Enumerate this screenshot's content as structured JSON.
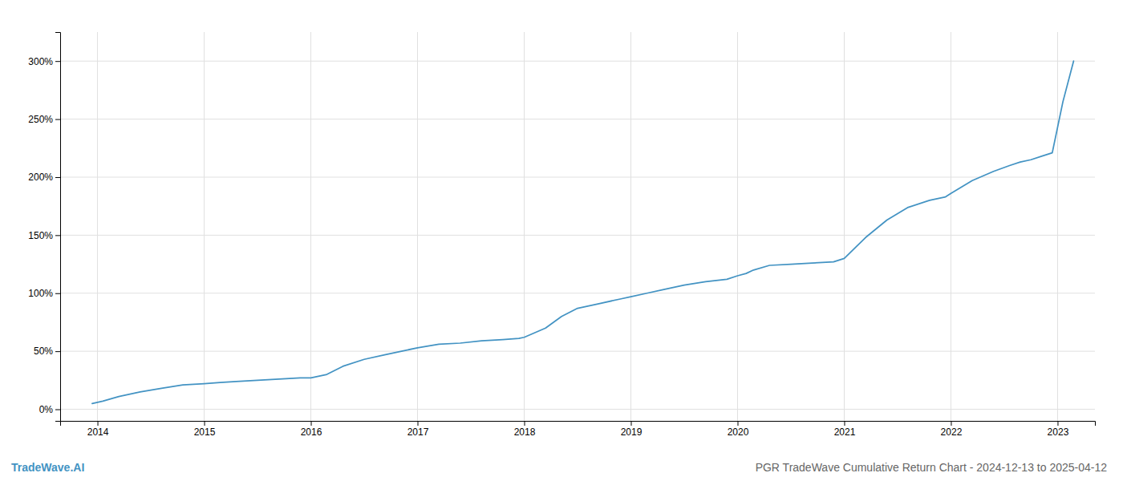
{
  "chart_data": {
    "type": "line",
    "title": "PGR TradeWave Cumulative Return Chart - 2024-12-13 to 2025-04-12",
    "annotations": [
      "TradeWave.AI"
    ],
    "color": "#4393c3",
    "grid": true,
    "x": [
      2013.95,
      2014.05,
      2014.2,
      2014.4,
      2014.6,
      2014.8,
      2015.0,
      2015.15,
      2015.3,
      2015.5,
      2015.7,
      2015.9,
      2016.0,
      2016.15,
      2016.3,
      2016.5,
      2016.7,
      2016.85,
      2017.0,
      2017.2,
      2017.4,
      2017.6,
      2017.8,
      2017.95,
      2018.0,
      2018.2,
      2018.35,
      2018.5,
      2018.7,
      2018.9,
      2019.0,
      2019.15,
      2019.3,
      2019.5,
      2019.7,
      2019.9,
      2020.0,
      2020.08,
      2020.15,
      2020.3,
      2020.5,
      2020.7,
      2020.9,
      2021.0,
      2021.2,
      2021.4,
      2021.6,
      2021.8,
      2021.95,
      2022.0,
      2022.2,
      2022.4,
      2022.55,
      2022.65,
      2022.75,
      2022.85,
      2022.95,
      2023.05,
      2023.15
    ],
    "values": [
      5,
      7,
      11,
      15,
      18,
      21,
      22,
      23,
      24,
      25,
      26,
      27,
      27,
      30,
      37,
      43,
      47,
      50,
      53,
      56,
      57,
      59,
      60,
      61,
      62,
      70,
      80,
      87,
      91,
      95,
      97,
      100,
      103,
      107,
      110,
      112,
      115,
      117,
      120,
      124,
      125,
      126,
      127,
      130,
      148,
      163,
      174,
      180,
      183,
      186,
      197,
      205,
      210,
      213,
      215,
      218,
      221,
      265,
      300
    ],
    "xlim": [
      2013.65,
      2023.35
    ],
    "xticks": [
      2014,
      2015,
      2016,
      2017,
      2018,
      2019,
      2020,
      2021,
      2022,
      2023
    ],
    "ylim": [
      -10,
      325
    ],
    "yticks": [
      {
        "value": 0,
        "label": "0%"
      },
      {
        "value": 50,
        "label": "50%"
      },
      {
        "value": 100,
        "label": "100%"
      },
      {
        "value": 150,
        "label": "150%"
      },
      {
        "value": 200,
        "label": "200%"
      },
      {
        "value": 250,
        "label": "250%"
      },
      {
        "value": 300,
        "label": "300%"
      }
    ]
  }
}
